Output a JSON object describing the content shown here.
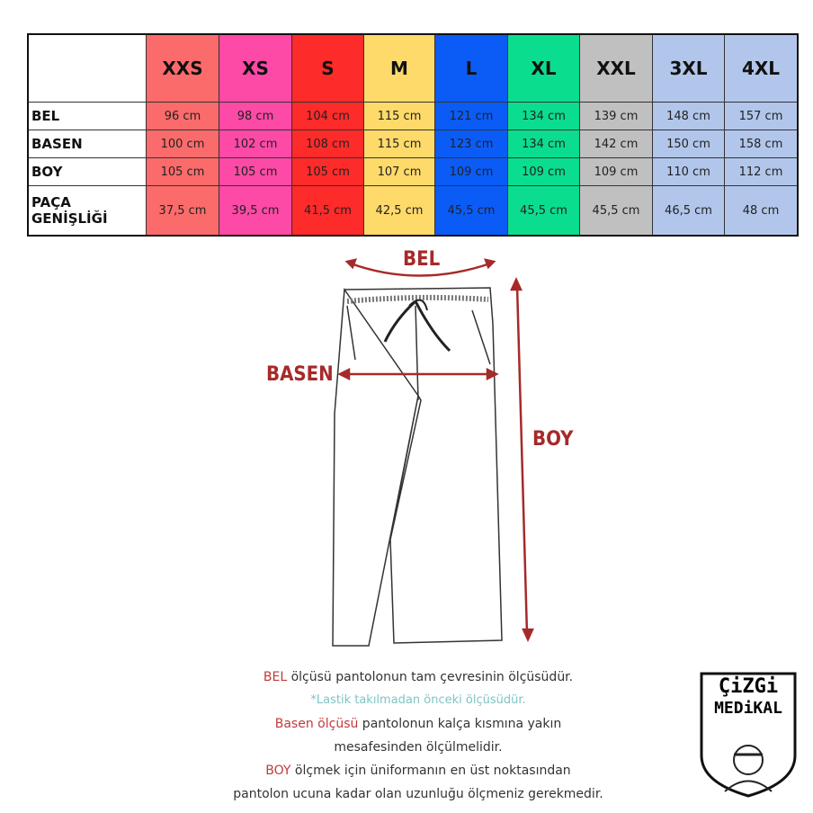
{
  "table": {
    "sizes": [
      "XXS",
      "XS",
      "S",
      "M",
      "L",
      "XL",
      "XXL",
      "3XL",
      "4XL"
    ],
    "colors": [
      "#fb6b6b",
      "#fc4aa6",
      "#fe2b2b",
      "#fdda6a",
      "#0b5cf6",
      "#0bdd8f",
      "#c0c0c0",
      "#b1c6ea",
      "#b1c6ea"
    ],
    "rows": [
      {
        "label": "BEL",
        "values": [
          "96 cm",
          "98 cm",
          "104 cm",
          "115 cm",
          "121 cm",
          "134 cm",
          "139 cm",
          "148 cm",
          "157 cm"
        ]
      },
      {
        "label": "BASEN",
        "values": [
          "100 cm",
          "102 cm",
          "108 cm",
          "115 cm",
          "123 cm",
          "134 cm",
          "142 cm",
          "150 cm",
          "158 cm"
        ]
      },
      {
        "label": "BOY",
        "values": [
          "105 cm",
          "105 cm",
          "105 cm",
          "107 cm",
          "109 cm",
          "109 cm",
          "109 cm",
          "110 cm",
          "112 cm"
        ]
      },
      {
        "label": "PAÇA GENİŞLİĞİ",
        "values": [
          "37,5 cm",
          "39,5 cm",
          "41,5 cm",
          "42,5 cm",
          "45,5 cm",
          "45,5 cm",
          "45,5 cm",
          "46,5 cm",
          "48 cm"
        ]
      }
    ]
  },
  "diagram": {
    "bel": "BEL",
    "basen": "BASEN",
    "boy": "BOY"
  },
  "notes": {
    "l1_red": "BEL",
    "l1": " ölçüsü pantolonun tam çevresinin ölçüsüdür.",
    "l2": "*Lastik takılmadan önceki ölçüsüdür.",
    "l3_red": "Basen ölçüsü",
    "l3": " pantolonun kalça kısmına yakın",
    "l4": "mesafesinden ölçülmelidir.",
    "l5_red": "BOY",
    "l5": " ölçmek için üniformanın en üst noktasından",
    "l6": "pantolon ucuna kadar olan uzunluğu ölçmeniz gerekmedir."
  },
  "logo": {
    "line1": "ÇiZGi",
    "line2": "MEDiKAL"
  }
}
